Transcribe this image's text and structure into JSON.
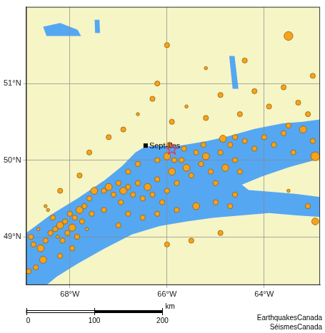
{
  "chart_data": {
    "type": "bubble",
    "color": "#f7a21b",
    "grid": true,
    "xlim": [
      -68.9,
      -62.85
    ],
    "ylim": [
      48.37,
      52.0
    ],
    "xticks": [
      {
        "value": -68,
        "label": "68°W"
      },
      {
        "value": -66,
        "label": "66°W"
      },
      {
        "value": -64,
        "label": "64°W"
      }
    ],
    "yticks": [
      {
        "value": 49,
        "label": "49°N"
      },
      {
        "value": 50,
        "label": "50°N"
      },
      {
        "value": 51,
        "label": "51°N"
      }
    ],
    "x": [
      -68.3,
      -68.2,
      -68.1,
      -68.05,
      -67.95,
      -67.9,
      -68.15,
      -68.25,
      -67.85,
      -68.0,
      -67.8,
      -67.7,
      -67.75,
      -68.4,
      -68.5,
      -68.6,
      -68.75,
      -68.8,
      -68.65,
      -68.35,
      -68.45,
      -67.6,
      -67.55,
      -67.65,
      -67.95,
      -68.2,
      -68.55,
      -68.85,
      -68.7,
      -67.5,
      -67.3,
      -67.2,
      -67.1,
      -67.0,
      -66.9,
      -66.8,
      -66.7,
      -66.6,
      -66.5,
      -66.4,
      -66.3,
      -66.2,
      -66.1,
      -66.0,
      -65.9,
      -65.8,
      -65.7,
      -65.6,
      -65.5,
      -65.4,
      -65.3,
      -65.2,
      -65.1,
      -65.0,
      -64.9,
      -64.8,
      -64.7,
      -64.6,
      -64.5,
      -64.4,
      -64.2,
      -64.0,
      -63.8,
      -63.6,
      -63.4,
      -63.2,
      -63.0,
      -62.95,
      -63.5,
      -64.6,
      -66.8,
      -66.5,
      -66.2,
      -65.8,
      -65.4,
      -65.0,
      -64.7,
      -66.95,
      -67.3,
      -67.0,
      -66.9,
      -66.6,
      -66.3,
      -65.9,
      -65.6,
      -65.2,
      -64.9,
      -64.5,
      -64.2,
      -63.9,
      -63.6,
      -63.3,
      -63.0,
      -63.1,
      -63.5,
      -64.4,
      -65.2,
      -66.0,
      -67.2,
      -67.6,
      -67.8,
      -68.2,
      -68.5,
      -66.0,
      -65.5,
      -64.9,
      -63.5,
      -63.1,
      -62.95,
      -66.2,
      -66.0,
      -65.85,
      -65.65,
      -66.2,
      -66.6,
      -65.25,
      -64.85,
      -64.6,
      -65.95,
      -66.8
    ],
    "values": [
      49.1,
      49.15,
      49.2,
      49.05,
      49.12,
      49.25,
      48.95,
      49.0,
      49.0,
      49.3,
      49.35,
      49.4,
      49.2,
      49.05,
      48.95,
      48.85,
      48.9,
      49.0,
      49.1,
      49.25,
      49.35,
      49.5,
      49.3,
      49.1,
      48.85,
      48.75,
      48.7,
      48.55,
      48.6,
      49.6,
      49.6,
      49.65,
      49.55,
      49.7,
      49.6,
      49.65,
      49.55,
      49.7,
      49.5,
      49.65,
      49.55,
      49.75,
      49.45,
      49.6,
      49.85,
      49.7,
      50.0,
      49.9,
      49.8,
      50.1,
      49.95,
      50.05,
      49.85,
      49.7,
      50.1,
      49.9,
      50.2,
      50.0,
      49.85,
      50.25,
      50.15,
      50.3,
      50.2,
      50.35,
      50.1,
      50.4,
      50.25,
      50.05,
      50.45,
      49.55,
      49.3,
      49.25,
      49.3,
      49.35,
      49.4,
      49.45,
      49.4,
      49.45,
      49.35,
      49.15,
      50.4,
      50.6,
      50.8,
      50.5,
      50.7,
      50.55,
      50.85,
      50.6,
      50.9,
      50.7,
      50.95,
      50.75,
      51.1,
      50.6,
      51.62,
      51.3,
      51.2,
      51.5,
      50.3,
      50.1,
      49.8,
      49.6,
      49.4,
      48.9,
      48.95,
      49.05,
      49.6,
      49.4,
      49.2,
      51.0,
      50.05,
      50.0,
      50.15,
      50.0,
      49.95,
      50.2,
      50.28,
      50.3,
      50.2,
      49.85
    ],
    "sizes": [
      2,
      3,
      2,
      2,
      3,
      2,
      2,
      1,
      2,
      2,
      3,
      2,
      2,
      2,
      2,
      3,
      2,
      2,
      1,
      2,
      1,
      2,
      2,
      1,
      2,
      2,
      3,
      2,
      2,
      3,
      2,
      3,
      2,
      2,
      3,
      2,
      2,
      2,
      2,
      3,
      2,
      2,
      2,
      2,
      3,
      2,
      2,
      3,
      2,
      2,
      2,
      3,
      2,
      2,
      2,
      3,
      2,
      2,
      2,
      2,
      2,
      2,
      2,
      2,
      2,
      3,
      2,
      4,
      2,
      2,
      2,
      2,
      2,
      2,
      3,
      2,
      2,
      2,
      2,
      2,
      2,
      1,
      2,
      2,
      1,
      2,
      2,
      2,
      2,
      2,
      2,
      2,
      2,
      2,
      4,
      2,
      1,
      2,
      2,
      2,
      2,
      2,
      1,
      2,
      2,
      2,
      1,
      2,
      3,
      2,
      3,
      2,
      2,
      2,
      2,
      2,
      3,
      2,
      2,
      2
    ],
    "water": [
      [
        [
          -68.9,
          49.05
        ],
        [
          -68.41,
          49.28
        ],
        [
          -67.84,
          49.5
        ],
        [
          -67.28,
          49.74
        ],
        [
          -66.93,
          49.92
        ],
        [
          -66.65,
          50.1
        ],
        [
          -66.44,
          50.18
        ],
        [
          -66.08,
          50.19
        ],
        [
          -65.73,
          50.19
        ],
        [
          -65.17,
          50.25
        ],
        [
          -64.75,
          50.31
        ],
        [
          -64.18,
          50.41
        ],
        [
          -63.62,
          50.48
        ],
        [
          -63.2,
          50.5
        ],
        [
          -62.85,
          50.53
        ],
        [
          -62.85,
          49.26
        ],
        [
          -63.34,
          49.28
        ],
        [
          -63.9,
          49.31
        ],
        [
          -64.46,
          49.28
        ],
        [
          -65.03,
          49.25
        ],
        [
          -65.59,
          49.2
        ],
        [
          -66.15,
          49.14
        ],
        [
          -66.72,
          49.03
        ],
        [
          -67.28,
          48.85
        ],
        [
          -67.84,
          48.65
        ],
        [
          -68.27,
          48.48
        ],
        [
          -68.48,
          48.37
        ],
        [
          -68.9,
          48.37
        ]
      ]
    ],
    "islands": [
      [
        [
          -64.46,
          49.68
        ],
        [
          -64.04,
          49.79
        ],
        [
          -63.48,
          49.91
        ],
        [
          -62.85,
          50.02
        ],
        [
          -62.85,
          49.52
        ],
        [
          -63.34,
          49.56
        ],
        [
          -63.9,
          49.59
        ],
        [
          -64.32,
          49.61
        ]
      ]
    ],
    "lakes": [
      [
        [
          -68.55,
          51.74
        ],
        [
          -68.2,
          51.79
        ],
        [
          -67.84,
          51.7
        ],
        [
          -67.77,
          51.62
        ],
        [
          -68.13,
          51.62
        ],
        [
          -68.48,
          51.62
        ]
      ],
      [
        [
          -67.49,
          51.83
        ],
        [
          -67.39,
          51.83
        ],
        [
          -67.38,
          51.66
        ],
        [
          -67.48,
          51.66
        ]
      ],
      [
        [
          -64.72,
          51.36
        ],
        [
          -64.61,
          51.36
        ],
        [
          -64.53,
          50.93
        ],
        [
          -64.65,
          50.93
        ]
      ]
    ],
    "places": [
      {
        "name": "Sept-Iles",
        "lon": -66.44,
        "lat": 50.19,
        "marker": "square",
        "color": "#000000"
      },
      {
        "lon": -65.9,
        "lat": 50.14,
        "marker": "star",
        "color": "#e8334a"
      }
    ],
    "scale_bar": {
      "ticks": [
        0,
        100,
        200
      ],
      "unit": "km"
    },
    "credit": [
      "EarthquakesCanada",
      "SéismesCanada"
    ]
  }
}
